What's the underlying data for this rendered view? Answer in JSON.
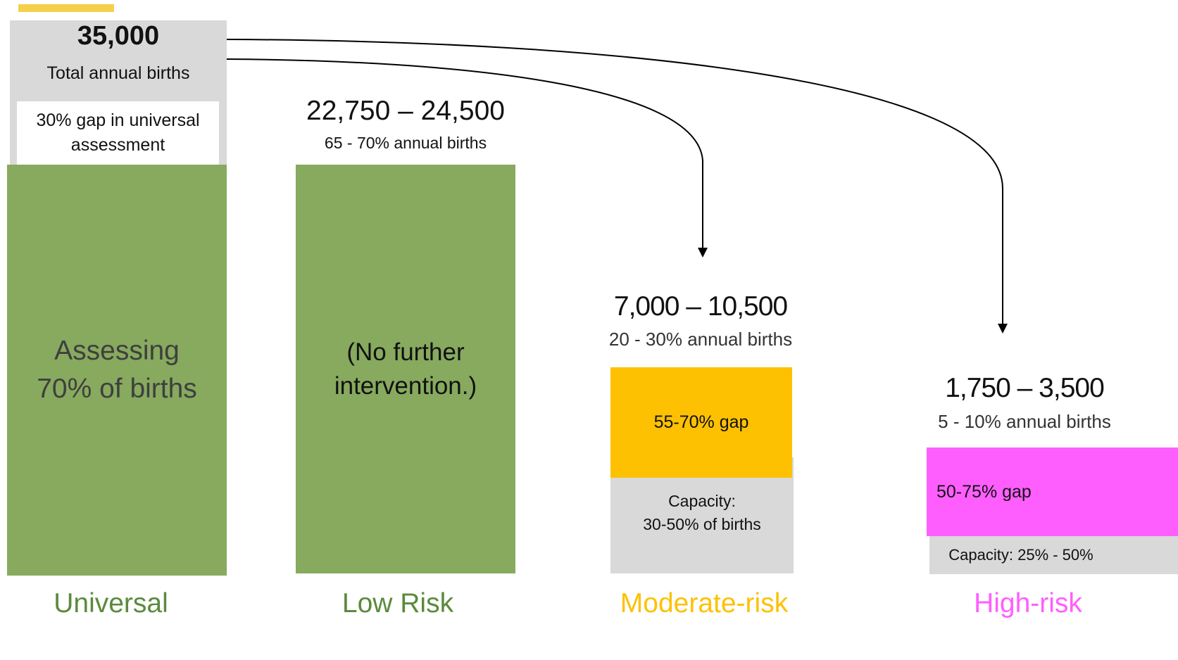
{
  "universal": {
    "total_births": "35,000",
    "total_label": "Total annual births",
    "gap_text": "30% gap in universal assessment",
    "assessing_line1": "Assessing",
    "assessing_line2": "70% of births",
    "category": "Universal"
  },
  "low_risk": {
    "range": "22,750 – 24,500",
    "percent": "65 - 70% annual births",
    "body_line1": "(No further",
    "body_line2": "intervention.)",
    "category": "Low Risk"
  },
  "moderate_risk": {
    "range": "7,000 – 10,500",
    "percent": "20 - 30% annual births",
    "gap": "55-70% gap",
    "capacity_line1": "Capacity:",
    "capacity_line2": "30-50% of births",
    "category": "Moderate-risk"
  },
  "high_risk": {
    "range": "1,750 – 3,500",
    "percent": "5 - 10% annual births",
    "gap": "50-75% gap",
    "capacity": "Capacity: 25% - 50%",
    "category": "High-risk"
  },
  "colors": {
    "green": "#87aa5e",
    "green_text": "#5b8a3c",
    "orange": "#fdc102",
    "magenta": "#ff5eff",
    "gray": "#d9d9d9",
    "accent": "#f5d04a"
  }
}
